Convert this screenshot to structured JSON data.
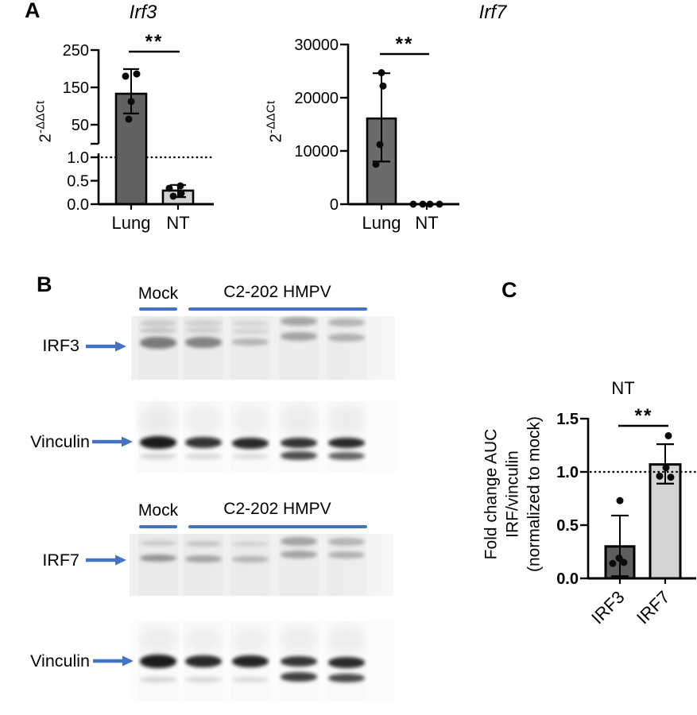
{
  "panels": {
    "a": "A",
    "b": "B",
    "c": "C"
  },
  "chart_data": [
    {
      "id": "irf3",
      "type": "bar",
      "title": "Irf3",
      "ylabel": {
        "base": "2",
        "sup": "-ΔΔCt"
      },
      "categories": [
        "Lung",
        "NT"
      ],
      "significance": "**",
      "axis": {
        "broken": true,
        "upper_ticks": [
          "250",
          "150",
          "50"
        ],
        "upper_tick_values": [
          250,
          150,
          50
        ],
        "lower_ticks": [
          "1.0",
          "0.5",
          "0.0"
        ],
        "lower_tick_values": [
          1.0,
          0.5,
          0.0
        ],
        "dotted_line_at": 1.0
      },
      "series": [
        {
          "name": "Lung",
          "mean": 133,
          "sd_low": 80,
          "sd_high": 199,
          "points": [
            180,
            186,
            112,
            65
          ],
          "bar_color": "#616161"
        },
        {
          "name": "NT",
          "mean": 0.29,
          "sd_low": 0.15,
          "sd_high": 0.41,
          "points": [
            0.34,
            0.39,
            0.17,
            0.23
          ],
          "bar_color": "#d2d2d2"
        }
      ]
    },
    {
      "id": "irf7",
      "type": "bar",
      "title": "Irf7",
      "ylabel": {
        "base": "2",
        "sup": "-ΔΔCt"
      },
      "categories": [
        "Lung",
        "NT"
      ],
      "significance": "**",
      "axis": {
        "ticks": [
          "30000",
          "20000",
          "10000",
          "0"
        ],
        "tick_values": [
          30000,
          20000,
          10000,
          0
        ],
        "ylim": [
          0,
          30000
        ]
      },
      "series": [
        {
          "name": "Lung",
          "mean": 16100,
          "sd_low": 8000,
          "sd_high": 24600,
          "points": [
            24700,
            22200,
            11200,
            7500
          ],
          "bar_color": "#6b6b6b"
        },
        {
          "name": "NT",
          "mean": 0,
          "sd_low": null,
          "sd_high": null,
          "points": [
            0,
            0,
            0,
            0
          ],
          "bar_color": null
        }
      ]
    },
    {
      "id": "fold_change_auc",
      "type": "bar",
      "title": "NT",
      "ylabel_lines": [
        "Fold change AUC",
        "IRF/vinculin",
        "(normalized to mock)"
      ],
      "categories": [
        "IRF3",
        "IRF7"
      ],
      "significance": "**",
      "axis": {
        "ticks": [
          "1.5",
          "1.0",
          "0.5",
          "0.0"
        ],
        "tick_values": [
          1.5,
          1.0,
          0.5,
          0.0
        ],
        "ylim": [
          0,
          1.5
        ],
        "dotted_line_at": 1.0
      },
      "series": [
        {
          "name": "IRF3",
          "mean": 0.3,
          "sd_low": 0.02,
          "sd_high": 0.59,
          "points": [
            0.73,
            0.19,
            0.14,
            0.15
          ],
          "bar_color": "#5e5e5e"
        },
        {
          "name": "IRF7",
          "mean": 1.07,
          "sd_low": 0.89,
          "sd_high": 1.26,
          "points": [
            1.34,
            1.04,
            0.96,
            0.95
          ],
          "bar_color": "#d4d4d4"
        }
      ]
    }
  ],
  "panel_b": {
    "sections": [
      {
        "mock_label": "Mock",
        "virus_label": "C2-202 HMPV",
        "rows": [
          {
            "target": "IRF3"
          },
          {
            "target": "Vinculin"
          }
        ],
        "lanes": 5
      },
      {
        "mock_label": "Mock",
        "virus_label": "C2-202 HMPV",
        "rows": [
          {
            "target": "IRF7"
          },
          {
            "target": "Vinculin"
          }
        ],
        "lanes": 5
      }
    ]
  },
  "colors": {
    "accent_blue": "#4472c4",
    "bar_dark": "#5e5e5e",
    "bar_light": "#d2d2d2"
  }
}
